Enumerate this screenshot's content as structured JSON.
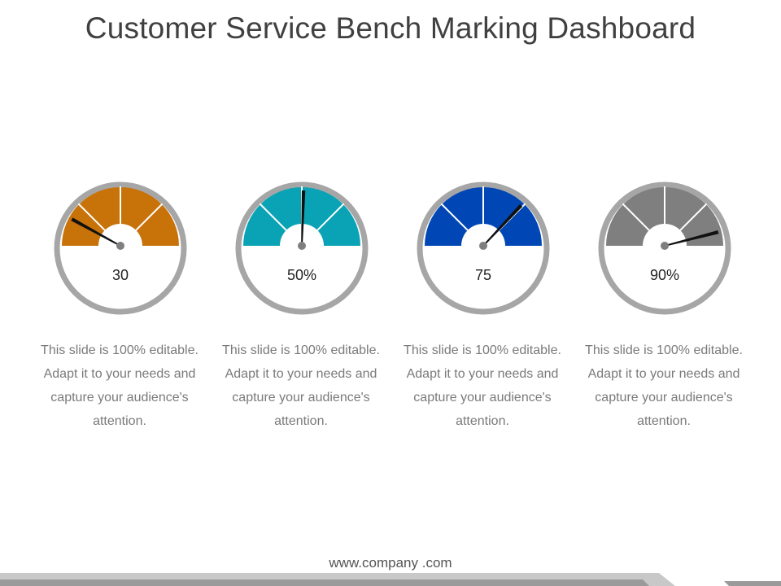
{
  "title": "Customer Service Bench Marking Dashboard",
  "gauges": [
    {
      "value_label": "30",
      "value": 30,
      "color": "#C8720A",
      "needle_value": 0.16,
      "caption": "This slide is 100% editable. Adapt it to your needs and capture your audience's attention."
    },
    {
      "value_label": "50%",
      "value": 50,
      "color": "#0AA3B5",
      "needle_value": 0.51,
      "caption": "This slide is 100% editable. Adapt it to your needs and capture your audience's attention."
    },
    {
      "value_label": "75",
      "value": 75,
      "color": "#0047B5",
      "needle_value": 0.74,
      "caption": "This slide is 100% editable. Adapt it to your needs and capture your audience's attention."
    },
    {
      "value_label": "90%",
      "value": 90,
      "color": "#7F7F7F",
      "needle_value": 0.92,
      "caption": "This slide is 100% editable. Adapt it to your needs and capture your audience's attention."
    }
  ],
  "footer": {
    "url": "www.company .com"
  },
  "colors": {
    "ring": "#A6A6A6",
    "needle": "#111111",
    "hub": "#7F7F7F",
    "footer_bar_light": "#C8C8C8",
    "footer_bar_dark": "#9A9A9A"
  }
}
